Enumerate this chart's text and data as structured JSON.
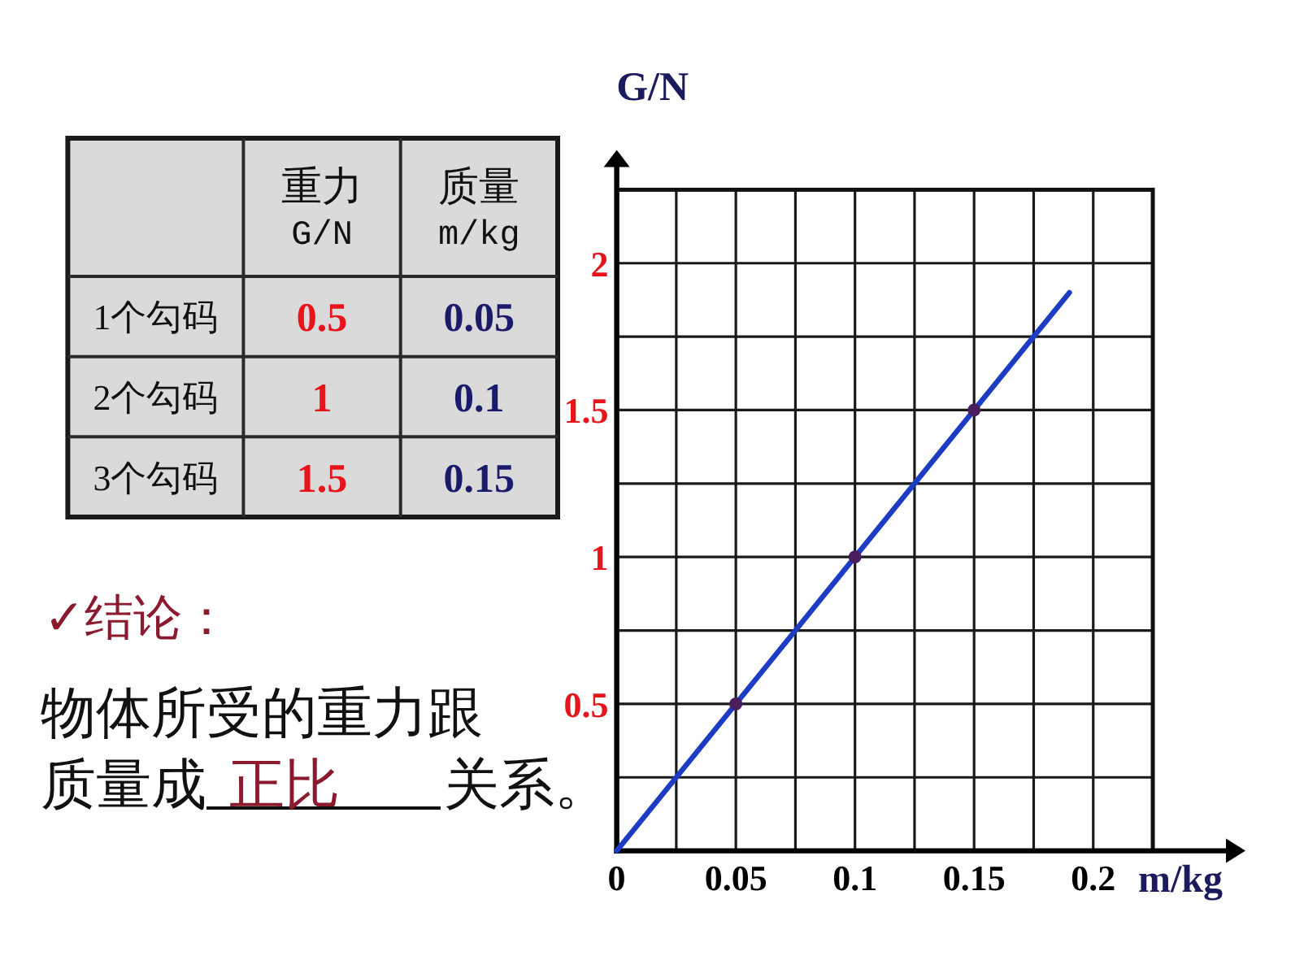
{
  "chart_data": [
    {
      "type": "other",
      "categories": [
        "1个勾码",
        "2个勾码",
        "3个勾码"
      ],
      "series": [
        {
          "name": "重力\nG/N",
          "values": [
            0.5,
            1,
            1.5
          ]
        },
        {
          "name": "质量\nm/kg",
          "values": [
            0.05,
            0.1,
            0.15
          ]
        }
      ],
      "data_labels": true
    },
    {
      "type": "line",
      "xlabel": "m/kg",
      "ylabel": "G/N",
      "xlim": [
        0,
        0.225
      ],
      "ylim": [
        0,
        2.25
      ],
      "xticks": [
        {
          "value": 0,
          "label": "0"
        },
        {
          "value": 0.025,
          "label": null
        },
        0.05,
        {
          "value": 0.075,
          "label": null
        },
        0.1,
        {
          "value": 0.125,
          "label": null
        },
        0.15,
        {
          "value": 0.175,
          "label": null
        },
        0.2,
        {
          "value": 0.225,
          "label": null
        }
      ],
      "yticks": [
        {
          "value": 0.25,
          "label": null
        },
        0.5,
        {
          "value": 0.75,
          "label": null
        },
        1,
        {
          "value": 1.25,
          "label": null
        },
        1.5,
        {
          "value": 1.75,
          "label": null
        },
        2,
        {
          "value": 2.25,
          "label": null
        }
      ],
      "grid": true,
      "series": [
        {
          "type": "line",
          "color": "#1c3cc4",
          "x": [
            0,
            0.19
          ],
          "values": [
            0,
            1.9
          ]
        },
        {
          "type": "scatter",
          "color": "#4a1e5e",
          "marker": "circle",
          "x": [
            0.05,
            0.1,
            0.15
          ],
          "values": [
            0.5,
            1,
            1.5
          ]
        }
      ]
    },
    {
      "type": "other",
      "title": "✓结论：",
      "annotations": [
        "物体所受的重力跟",
        "质量成",
        "正比",
        "关系。"
      ]
    }
  ]
}
